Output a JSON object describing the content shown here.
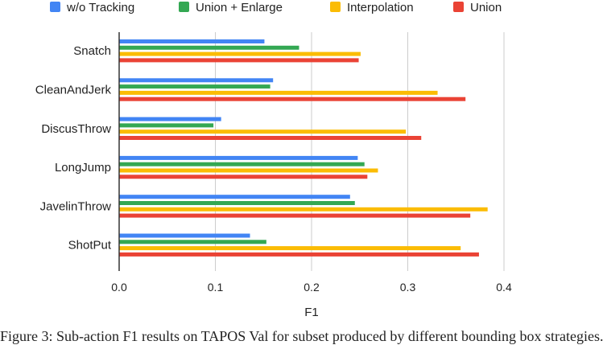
{
  "chart_data": {
    "type": "bar",
    "orientation": "horizontal",
    "categories": [
      "Snatch",
      "CleanAndJerk",
      "DiscusThrow",
      "LongJump",
      "JavelinThrow",
      "ShotPut"
    ],
    "series": [
      {
        "name": "w/o Tracking",
        "color": "#4285F4",
        "values": [
          0.151,
          0.16,
          0.106,
          0.248,
          0.24,
          0.136
        ]
      },
      {
        "name": "Union + Enlarge",
        "color": "#34A853",
        "values": [
          0.187,
          0.157,
          0.098,
          0.255,
          0.245,
          0.153
        ]
      },
      {
        "name": "Interpolation",
        "color": "#FBBC04",
        "values": [
          0.251,
          0.331,
          0.298,
          0.269,
          0.383,
          0.355
        ]
      },
      {
        "name": "Union",
        "color": "#EA4335",
        "values": [
          0.249,
          0.36,
          0.314,
          0.258,
          0.365,
          0.374
        ]
      }
    ],
    "xlabel": "F1",
    "xlim": [
      0,
      0.4
    ],
    "xticks": [
      "0.0",
      "0.1",
      "0.2",
      "0.3",
      "0.4"
    ],
    "grid": "vertical",
    "legend": "top"
  },
  "caption": "Figure 3: Sub-action F1 results on TAPOS Val for subset produced by different bounding box strategies."
}
